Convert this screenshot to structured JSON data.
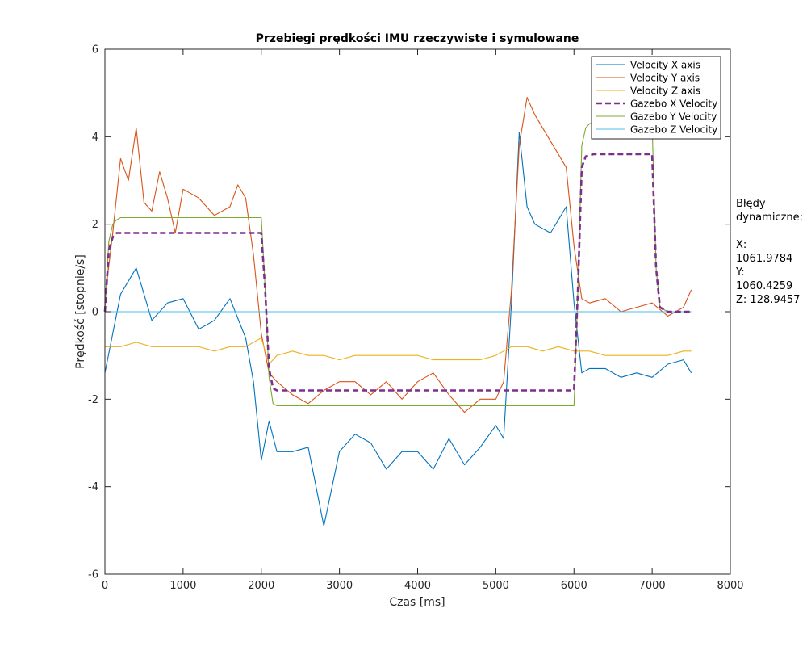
{
  "chart_data": {
    "type": "line",
    "title": "Przebiegi prędkości IMU rzeczywiste i symulowane",
    "xlabel": "Czas [ms]",
    "ylabel": "Prędkość [stopnie/s]",
    "xlim": [
      0,
      8000
    ],
    "ylim": [
      -6,
      6
    ],
    "xticks": [
      0,
      1000,
      2000,
      3000,
      4000,
      5000,
      6000,
      7000,
      8000
    ],
    "yticks": [
      -6,
      -4,
      -2,
      0,
      2,
      4,
      6
    ],
    "grid": false,
    "legend_position": "top-right",
    "series": [
      {
        "name": "Velocity X axis",
        "color": "#0072BD",
        "style": "solid",
        "x": [
          0,
          200,
          400,
          600,
          800,
          1000,
          1200,
          1400,
          1600,
          1800,
          1900,
          2000,
          2100,
          2200,
          2400,
          2600,
          2800,
          3000,
          3200,
          3400,
          3600,
          3800,
          4000,
          4200,
          4400,
          4600,
          4800,
          5000,
          5100,
          5200,
          5300,
          5400,
          5500,
          5700,
          5900,
          6000,
          6100,
          6200,
          6400,
          6600,
          6800,
          7000,
          7200,
          7400,
          7500
        ],
        "y": [
          -1.4,
          0.4,
          1.0,
          -0.2,
          0.2,
          0.3,
          -0.4,
          -0.2,
          0.3,
          -0.6,
          -1.6,
          -3.4,
          -2.5,
          -3.2,
          -3.2,
          -3.1,
          -4.9,
          -3.2,
          -2.8,
          -3.0,
          -3.6,
          -3.2,
          -3.2,
          -3.6,
          -2.9,
          -3.5,
          -3.1,
          -2.6,
          -2.9,
          0.2,
          4.1,
          2.4,
          2.0,
          1.8,
          2.4,
          0.2,
          -1.4,
          -1.3,
          -1.3,
          -1.5,
          -1.4,
          -1.5,
          -1.2,
          -1.1,
          -1.4
        ]
      },
      {
        "name": "Velocity Y axis",
        "color": "#D95319",
        "style": "solid",
        "x": [
          0,
          100,
          200,
          300,
          400,
          500,
          600,
          700,
          800,
          900,
          1000,
          1200,
          1400,
          1600,
          1700,
          1800,
          1900,
          2000,
          2100,
          2200,
          2400,
          2600,
          2800,
          3000,
          3200,
          3400,
          3600,
          3800,
          4000,
          4200,
          4400,
          4600,
          4800,
          5000,
          5100,
          5200,
          5300,
          5400,
          5500,
          5700,
          5900,
          6000,
          6100,
          6200,
          6400,
          6600,
          6800,
          7000,
          7200,
          7400,
          7500
        ],
        "y": [
          0.3,
          1.8,
          3.5,
          3.0,
          4.2,
          2.5,
          2.3,
          3.2,
          2.6,
          1.8,
          2.8,
          2.6,
          2.2,
          2.4,
          2.9,
          2.6,
          1.3,
          -0.5,
          -1.4,
          -1.6,
          -1.9,
          -2.1,
          -1.8,
          -1.6,
          -1.6,
          -1.9,
          -1.6,
          -2.0,
          -1.6,
          -1.4,
          -1.9,
          -2.3,
          -2.0,
          -2.0,
          -1.6,
          0.5,
          3.8,
          4.9,
          4.5,
          3.9,
          3.3,
          1.5,
          0.3,
          0.2,
          0.3,
          0.0,
          0.1,
          0.2,
          -0.1,
          0.1,
          0.5
        ]
      },
      {
        "name": "Velocity Z axis",
        "color": "#EDB120",
        "style": "solid",
        "x": [
          0,
          200,
          400,
          600,
          800,
          1000,
          1200,
          1400,
          1600,
          1800,
          2000,
          2100,
          2200,
          2400,
          2600,
          2800,
          3000,
          3200,
          3400,
          3600,
          3800,
          4000,
          4200,
          4400,
          4600,
          4800,
          5000,
          5200,
          5400,
          5600,
          5800,
          6000,
          6200,
          6400,
          6600,
          6800,
          7000,
          7200,
          7400,
          7500
        ],
        "y": [
          -0.8,
          -0.8,
          -0.7,
          -0.8,
          -0.8,
          -0.8,
          -0.8,
          -0.9,
          -0.8,
          -0.8,
          -0.6,
          -1.2,
          -1.0,
          -0.9,
          -1.0,
          -1.0,
          -1.1,
          -1.0,
          -1.0,
          -1.0,
          -1.0,
          -1.0,
          -1.1,
          -1.1,
          -1.1,
          -1.1,
          -1.0,
          -0.8,
          -0.8,
          -0.9,
          -0.8,
          -0.9,
          -0.9,
          -1.0,
          -1.0,
          -1.0,
          -1.0,
          -1.0,
          -0.9,
          -0.9
        ]
      },
      {
        "name": "Gazebo X Velocity",
        "color": "#7E2F8E",
        "style": "dashed",
        "x": [
          0,
          50,
          100,
          150,
          250,
          2000,
          2050,
          2100,
          2150,
          2200,
          6000,
          6050,
          6100,
          6150,
          6250,
          7000,
          7050,
          7100,
          7200,
          7500
        ],
        "y": [
          0,
          1.4,
          1.7,
          1.8,
          1.8,
          1.8,
          0.5,
          -1.3,
          -1.75,
          -1.8,
          -1.8,
          0.5,
          3.3,
          3.55,
          3.6,
          3.6,
          1.0,
          0.1,
          0,
          0
        ]
      },
      {
        "name": "Gazebo Y Velocity",
        "color": "#77AC30",
        "style": "solid",
        "x": [
          0,
          50,
          100,
          150,
          200,
          2000,
          2050,
          2100,
          2150,
          2200,
          6000,
          6050,
          6100,
          6150,
          6200,
          7000,
          7050,
          7100,
          7200,
          7500
        ],
        "y": [
          0,
          1.6,
          2.0,
          2.1,
          2.15,
          2.15,
          0.5,
          -1.5,
          -2.1,
          -2.15,
          -2.15,
          0.5,
          3.8,
          4.2,
          4.3,
          4.3,
          1.0,
          0.1,
          0,
          0
        ]
      },
      {
        "name": "Gazebo Z Velocity",
        "color": "#4DBEEE",
        "style": "solid",
        "x": [
          0,
          7500
        ],
        "y": [
          0,
          0
        ]
      }
    ]
  },
  "side_note": {
    "line1": "Błędy",
    "line2": "dynamiczne:",
    "line3": "X:",
    "line4": "1061.9784",
    "line5": "Y:",
    "line6": "1060.4259",
    "line7": "Z: 128.9457"
  }
}
